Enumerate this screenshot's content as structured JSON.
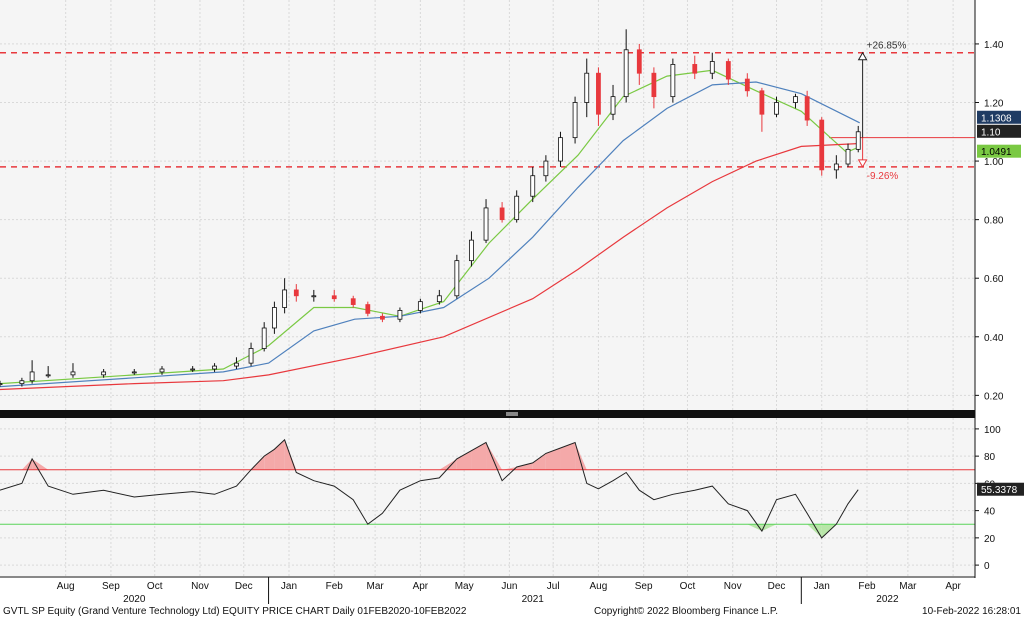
{
  "chart_data": [
    {
      "type": "candlestick",
      "panel": "price",
      "yaxis_side": "right",
      "ylim": [
        0.15,
        1.55
      ],
      "yticks": [
        "0.20",
        "0.40",
        "0.60",
        "0.80",
        "1.00",
        "1.20",
        "1.40"
      ],
      "grid": true,
      "candles": [
        [
          "2020-07-01",
          0.24,
          0.25,
          0.23,
          0.24
        ],
        [
          "2020-07-16",
          0.24,
          0.26,
          0.23,
          0.25
        ],
        [
          "2020-07-23",
          0.25,
          0.32,
          0.24,
          0.28
        ],
        [
          "2020-08-03",
          0.27,
          0.3,
          0.26,
          0.27
        ],
        [
          "2020-08-20",
          0.27,
          0.31,
          0.26,
          0.28
        ],
        [
          "2020-09-10",
          0.27,
          0.29,
          0.26,
          0.28
        ],
        [
          "2020-10-01",
          0.28,
          0.29,
          0.27,
          0.28
        ],
        [
          "2020-10-20",
          0.28,
          0.3,
          0.27,
          0.29
        ],
        [
          "2020-11-10",
          0.29,
          0.3,
          0.28,
          0.29
        ],
        [
          "2020-11-25",
          0.29,
          0.31,
          0.28,
          0.3
        ],
        [
          "2020-12-10",
          0.3,
          0.33,
          0.29,
          0.31
        ],
        [
          "2020-12-20",
          0.31,
          0.38,
          0.3,
          0.36
        ],
        [
          "2020-12-29",
          0.36,
          0.45,
          0.35,
          0.43
        ],
        [
          "2021-01-05",
          0.43,
          0.52,
          0.41,
          0.5
        ],
        [
          "2021-01-12",
          0.5,
          0.6,
          0.48,
          0.56
        ],
        [
          "2021-01-20",
          0.56,
          0.58,
          0.52,
          0.54
        ],
        [
          "2021-02-01",
          0.54,
          0.56,
          0.52,
          0.54
        ],
        [
          "2021-02-15",
          0.54,
          0.56,
          0.52,
          0.53
        ],
        [
          "2021-02-28",
          0.53,
          0.54,
          0.5,
          0.51
        ],
        [
          "2021-03-10",
          0.51,
          0.52,
          0.47,
          0.48
        ],
        [
          "2021-03-20",
          0.47,
          0.48,
          0.45,
          0.46
        ],
        [
          "2021-04-01",
          0.46,
          0.5,
          0.45,
          0.49
        ],
        [
          "2021-04-15",
          0.49,
          0.53,
          0.48,
          0.52
        ],
        [
          "2021-04-28",
          0.52,
          0.56,
          0.51,
          0.54
        ],
        [
          "2021-05-10",
          0.54,
          0.68,
          0.53,
          0.66
        ],
        [
          "2021-05-20",
          0.66,
          0.76,
          0.64,
          0.73
        ],
        [
          "2021-05-30",
          0.73,
          0.87,
          0.72,
          0.84
        ],
        [
          "2021-06-10",
          0.84,
          0.86,
          0.79,
          0.8
        ],
        [
          "2021-06-20",
          0.8,
          0.9,
          0.79,
          0.88
        ],
        [
          "2021-07-01",
          0.88,
          0.98,
          0.86,
          0.95
        ],
        [
          "2021-07-10",
          0.95,
          1.02,
          0.93,
          1.0
        ],
        [
          "2021-07-20",
          1.0,
          1.1,
          0.98,
          1.08
        ],
        [
          "2021-07-30",
          1.08,
          1.22,
          1.06,
          1.2
        ],
        [
          "2021-08-07",
          1.2,
          1.35,
          1.15,
          1.3
        ],
        [
          "2021-08-15",
          1.3,
          1.32,
          1.12,
          1.16
        ],
        [
          "2021-08-25",
          1.16,
          1.26,
          1.14,
          1.22
        ],
        [
          "2021-09-03",
          1.22,
          1.45,
          1.2,
          1.38
        ],
        [
          "2021-09-12",
          1.38,
          1.4,
          1.26,
          1.3
        ],
        [
          "2021-09-22",
          1.3,
          1.32,
          1.18,
          1.22
        ],
        [
          "2021-10-05",
          1.22,
          1.35,
          1.2,
          1.33
        ],
        [
          "2021-10-20",
          1.33,
          1.36,
          1.28,
          1.3
        ],
        [
          "2021-11-01",
          1.3,
          1.37,
          1.28,
          1.34
        ],
        [
          "2021-11-12",
          1.34,
          1.35,
          1.26,
          1.28
        ],
        [
          "2021-11-25",
          1.28,
          1.3,
          1.22,
          1.24
        ],
        [
          "2021-12-05",
          1.24,
          1.25,
          1.1,
          1.16
        ],
        [
          "2021-12-15",
          1.16,
          1.22,
          1.15,
          1.2
        ],
        [
          "2021-12-28",
          1.2,
          1.23,
          1.18,
          1.22
        ],
        [
          "2022-01-05",
          1.22,
          1.24,
          1.12,
          1.14
        ],
        [
          "2022-01-15",
          1.14,
          1.15,
          0.95,
          0.97
        ],
        [
          "2022-01-25",
          0.97,
          1.02,
          0.94,
          0.99
        ],
        [
          "2022-02-02",
          0.99,
          1.06,
          0.98,
          1.04
        ],
        [
          "2022-02-09",
          1.04,
          1.12,
          1.03,
          1.1
        ]
      ],
      "moving_averages": [
        {
          "color": "#7ac943",
          "points": [
            [
              "2020-07-01",
              0.24
            ],
            [
              "2020-10-01",
              0.27
            ],
            [
              "2020-12-01",
              0.29
            ],
            [
              "2021-01-01",
              0.37
            ],
            [
              "2021-02-01",
              0.5
            ],
            [
              "2021-03-01",
              0.5
            ],
            [
              "2021-04-01",
              0.47
            ],
            [
              "2021-05-01",
              0.52
            ],
            [
              "2021-06-01",
              0.72
            ],
            [
              "2021-07-01",
              0.87
            ],
            [
              "2021-08-01",
              1.02
            ],
            [
              "2021-09-01",
              1.22
            ],
            [
              "2021-10-01",
              1.29
            ],
            [
              "2021-11-01",
              1.31
            ],
            [
              "2021-12-01",
              1.24
            ],
            [
              "2022-01-01",
              1.17
            ],
            [
              "2022-02-01",
              1.03
            ],
            [
              "2022-02-10",
              1.0491
            ]
          ]
        },
        {
          "color": "#4f81bd",
          "points": [
            [
              "2020-07-01",
              0.23
            ],
            [
              "2020-10-01",
              0.26
            ],
            [
              "2020-12-01",
              0.28
            ],
            [
              "2021-01-01",
              0.31
            ],
            [
              "2021-02-01",
              0.42
            ],
            [
              "2021-03-01",
              0.46
            ],
            [
              "2021-04-01",
              0.47
            ],
            [
              "2021-05-01",
              0.5
            ],
            [
              "2021-06-01",
              0.6
            ],
            [
              "2021-07-01",
              0.74
            ],
            [
              "2021-08-01",
              0.91
            ],
            [
              "2021-09-01",
              1.07
            ],
            [
              "2021-10-01",
              1.18
            ],
            [
              "2021-11-01",
              1.26
            ],
            [
              "2021-12-01",
              1.27
            ],
            [
              "2022-01-01",
              1.23
            ],
            [
              "2022-02-10",
              1.1308
            ]
          ]
        },
        {
          "color": "#e8383d",
          "points": [
            [
              "2020-07-01",
              0.22
            ],
            [
              "2020-10-01",
              0.24
            ],
            [
              "2020-12-01",
              0.25
            ],
            [
              "2021-01-01",
              0.27
            ],
            [
              "2021-03-01",
              0.33
            ],
            [
              "2021-05-01",
              0.4
            ],
            [
              "2021-07-01",
              0.53
            ],
            [
              "2021-08-01",
              0.63
            ],
            [
              "2021-09-01",
              0.74
            ],
            [
              "2021-10-01",
              0.84
            ],
            [
              "2021-11-01",
              0.93
            ],
            [
              "2021-12-01",
              1.0
            ],
            [
              "2022-01-01",
              1.05
            ],
            [
              "2022-02-10",
              1.06
            ]
          ]
        }
      ],
      "reference_lines": [
        {
          "value": 1.37,
          "style": "dashed",
          "color": "#e8383d"
        },
        {
          "value": 0.98,
          "style": "dashed",
          "color": "#e8383d"
        },
        {
          "value": 1.08,
          "style": "solid",
          "color": "#e8383d"
        }
      ],
      "annotations": [
        {
          "text": "+26.85%",
          "color": "#333333"
        },
        {
          "text": "-9.26%",
          "color": "#e8383d"
        }
      ],
      "value_labels": [
        {
          "text": "1.1308",
          "background": "#1f3b63",
          "color": "#ffffff",
          "value": 1.1308
        },
        {
          "text": "1.10",
          "background": "#222222",
          "color": "#ffffff",
          "value": 1.1
        },
        {
          "text": "1.0491",
          "background": "#7ac943",
          "color": "#000000",
          "value": 1.0491
        }
      ]
    },
    {
      "type": "line",
      "panel": "indicator",
      "yaxis_side": "right",
      "ylim": [
        -8,
        108
      ],
      "yticks": [
        "0",
        "20",
        "40",
        "60",
        "80",
        "100"
      ],
      "upper_band": 70,
      "lower_band": 30,
      "series": [
        {
          "color": "#222222",
          "points": [
            [
              "2020-07-01",
              55
            ],
            [
              "2020-07-16",
              60
            ],
            [
              "2020-07-23",
              78
            ],
            [
              "2020-08-03",
              58
            ],
            [
              "2020-08-20",
              52
            ],
            [
              "2020-09-10",
              55
            ],
            [
              "2020-10-01",
              50
            ],
            [
              "2020-10-20",
              52
            ],
            [
              "2020-11-10",
              54
            ],
            [
              "2020-11-25",
              52
            ],
            [
              "2020-12-10",
              58
            ],
            [
              "2020-12-20",
              70
            ],
            [
              "2020-12-29",
              80
            ],
            [
              "2021-01-05",
              85
            ],
            [
              "2021-01-12",
              92
            ],
            [
              "2021-01-20",
              68
            ],
            [
              "2021-02-01",
              62
            ],
            [
              "2021-02-15",
              58
            ],
            [
              "2021-02-28",
              48
            ],
            [
              "2021-03-10",
              30
            ],
            [
              "2021-03-20",
              38
            ],
            [
              "2021-04-01",
              55
            ],
            [
              "2021-04-15",
              62
            ],
            [
              "2021-04-28",
              64
            ],
            [
              "2021-05-10",
              78
            ],
            [
              "2021-05-20",
              84
            ],
            [
              "2021-05-30",
              90
            ],
            [
              "2021-06-10",
              62
            ],
            [
              "2021-06-20",
              72
            ],
            [
              "2021-07-01",
              75
            ],
            [
              "2021-07-10",
              82
            ],
            [
              "2021-07-20",
              86
            ],
            [
              "2021-07-30",
              90
            ],
            [
              "2021-08-07",
              60
            ],
            [
              "2021-08-15",
              56
            ],
            [
              "2021-08-25",
              62
            ],
            [
              "2021-09-03",
              68
            ],
            [
              "2021-09-12",
              55
            ],
            [
              "2021-09-22",
              48
            ],
            [
              "2021-10-05",
              52
            ],
            [
              "2021-10-20",
              55
            ],
            [
              "2021-11-01",
              58
            ],
            [
              "2021-11-12",
              45
            ],
            [
              "2021-11-25",
              40
            ],
            [
              "2021-12-05",
              25
            ],
            [
              "2021-12-15",
              48
            ],
            [
              "2021-12-28",
              52
            ],
            [
              "2022-01-05",
              38
            ],
            [
              "2022-01-15",
              20
            ],
            [
              "2022-01-25",
              30
            ],
            [
              "2022-02-02",
              45
            ],
            [
              "2022-02-09",
              55.3378
            ]
          ]
        }
      ],
      "value_labels": [
        {
          "text": "55.3378",
          "background": "#222222",
          "color": "#ffffff",
          "value": 55.3378
        }
      ]
    }
  ],
  "xaxis": {
    "start": "2020-07-01",
    "end": "2022-04-30",
    "months": [
      {
        "label": "Aug",
        "date": "2020-08-15"
      },
      {
        "label": "Sep",
        "date": "2020-09-15"
      },
      {
        "label": "Oct",
        "date": "2020-10-15"
      },
      {
        "label": "Nov",
        "date": "2020-11-15"
      },
      {
        "label": "Dec",
        "date": "2020-12-15"
      },
      {
        "label": "Jan",
        "date": "2021-01-15"
      },
      {
        "label": "Feb",
        "date": "2021-02-15"
      },
      {
        "label": "Mar",
        "date": "2021-03-15"
      },
      {
        "label": "Apr",
        "date": "2021-04-15"
      },
      {
        "label": "May",
        "date": "2021-05-15"
      },
      {
        "label": "Jun",
        "date": "2021-06-15"
      },
      {
        "label": "Jul",
        "date": "2021-07-15"
      },
      {
        "label": "Aug",
        "date": "2021-08-15"
      },
      {
        "label": "Sep",
        "date": "2021-09-15"
      },
      {
        "label": "Oct",
        "date": "2021-10-15"
      },
      {
        "label": "Nov",
        "date": "2021-11-15"
      },
      {
        "label": "Dec",
        "date": "2021-12-15"
      },
      {
        "label": "Jan",
        "date": "2022-01-15"
      },
      {
        "label": "Feb",
        "date": "2022-02-15"
      },
      {
        "label": "Mar",
        "date": "2022-03-15"
      },
      {
        "label": "Apr",
        "date": "2022-04-15"
      }
    ],
    "years": [
      {
        "label": "2020",
        "date": "2020-10-01"
      },
      {
        "label": "2021",
        "date": "2021-07-01"
      },
      {
        "label": "2022",
        "date": "2022-03-01"
      }
    ],
    "year_boundaries": [
      "2021-01-01",
      "2022-01-01"
    ]
  },
  "footer": {
    "left": "GVTL SP Equity (Grand Venture Technology Ltd) EQUITY PRICE CHART  Daily 01FEB2020-10FEB2022",
    "center": "Copyright© 2022 Bloomberg Finance L.P.",
    "right": "10-Feb-2022  16:28:01"
  }
}
